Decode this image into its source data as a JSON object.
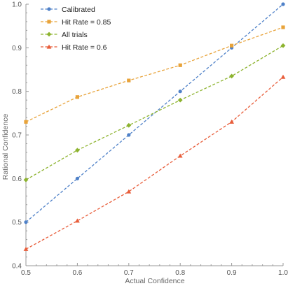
{
  "chart_data": {
    "type": "line",
    "title": "",
    "xlabel": "Actual Confidence",
    "ylabel": "Rational Confidence",
    "xlim": [
      0.5,
      1.0
    ],
    "ylim": [
      0.4,
      1.0
    ],
    "x_ticks": [
      "0.5",
      "0.6",
      "0.7",
      "0.8",
      "0.9",
      "1.0"
    ],
    "y_ticks": [
      "0.4",
      "0.5",
      "0.6",
      "0.7",
      "0.8",
      "0.9",
      "1.0"
    ],
    "grid": false,
    "legend_position": "top-left",
    "x": [
      0.5,
      0.6,
      0.7,
      0.8,
      0.9,
      1.0
    ],
    "series": [
      {
        "name": "Calibrated",
        "color": "#4f81c8",
        "marker": "circle",
        "values": [
          0.5,
          0.6,
          0.7,
          0.8,
          0.9,
          1.0
        ]
      },
      {
        "name": "Hit Rate = 0.85",
        "color": "#e8a33a",
        "marker": "square",
        "values": [
          0.73,
          0.787,
          0.825,
          0.86,
          0.905,
          0.947
        ]
      },
      {
        "name": "All trials",
        "color": "#8db32f",
        "marker": "diamond",
        "values": [
          0.597,
          0.665,
          0.722,
          0.78,
          0.835,
          0.905
        ]
      },
      {
        "name": "Hit Rate = 0.6",
        "color": "#e85d3a",
        "marker": "triangle",
        "values": [
          0.438,
          0.503,
          0.57,
          0.652,
          0.73,
          0.833
        ]
      }
    ]
  }
}
